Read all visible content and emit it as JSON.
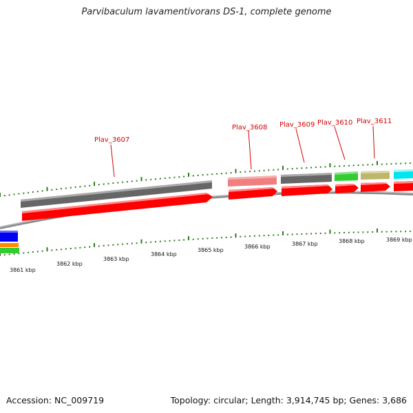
{
  "title": "Parvibaculum lavamentivorans DS-1, complete genome",
  "footer": {
    "accession": "Accession: NC_009719",
    "summary": "Topology: circular; Length: 3,914,745 bp; Genes: 3,686"
  },
  "kbp_labels": [
    "3861 kbp",
    "3862 kbp",
    "3863 kbp",
    "3864 kbp",
    "3865 kbp",
    "3866 kbp",
    "3867 kbp",
    "3868 kbp",
    "3869 kbp"
  ],
  "gene_labels": [
    "Plav_3607",
    "Plav_3608",
    "Plav_3609",
    "Plav_3610",
    "Plav_3611"
  ],
  "colors": {
    "backbone": "#8c8c8c",
    "tick": "#2a7a1a",
    "cds": "#ff0000",
    "gene_gray": "#666666",
    "gene_pink": "#f08080",
    "gene_green": "#33cc33",
    "gene_khaki": "#bdb76b",
    "gene_cyan": "#00e5ee",
    "gene_blue": "#0000ee",
    "gene_orange": "#ff8c00",
    "label": "#d40000"
  }
}
